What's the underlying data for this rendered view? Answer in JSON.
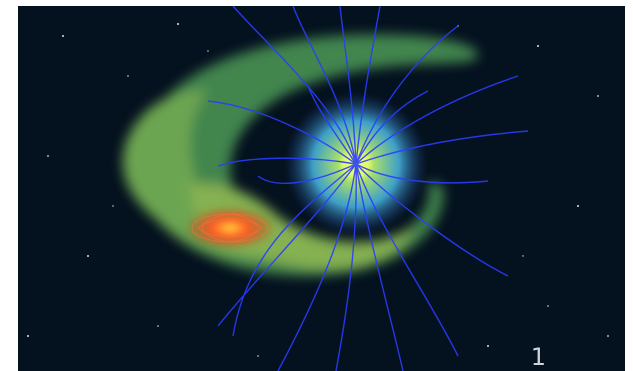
{
  "slide": {
    "page_number": "1"
  },
  "colors": {
    "background": "#04111f",
    "field_lines": "#2a3cff",
    "plasma_torus": "#6fbf6a",
    "planet_core": "#d8f05a",
    "moon_spot": "#ff4a22"
  }
}
